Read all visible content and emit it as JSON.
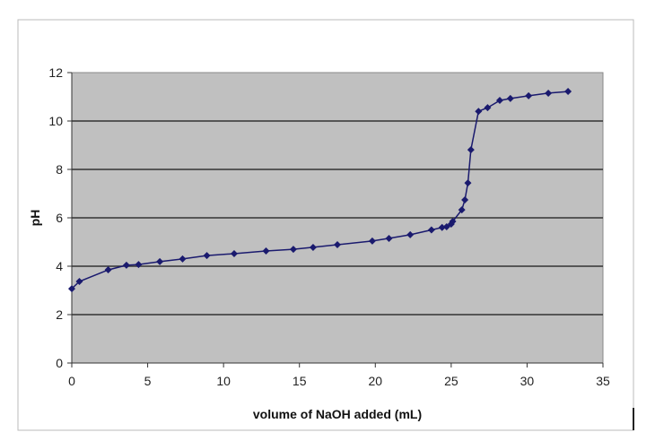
{
  "chart_data": {
    "type": "line",
    "title": "",
    "xlabel": "volume of NaOH added (mL)",
    "ylabel": "pH",
    "xlim": [
      0,
      35
    ],
    "ylim": [
      0,
      12
    ],
    "xticks": [
      "0",
      "5",
      "10",
      "15",
      "20",
      "25",
      "30",
      "35"
    ],
    "yticks": [
      "0",
      "2",
      "4",
      "6",
      "8",
      "10",
      "12"
    ],
    "grid": "horizontal",
    "plot_background": "#c0c0c0",
    "series_color": "#1a1a6e",
    "marker": "diamond",
    "series": [
      {
        "x": [
          0,
          0.5,
          2.4,
          3.6,
          4.4,
          5.8,
          7.3,
          8.9,
          10.7,
          12.8,
          14.6,
          15.9,
          17.5,
          19.8,
          20.9,
          22.3,
          23.7,
          24.4,
          24.7,
          25.0,
          25.1,
          25.7,
          25.9,
          26.1,
          26.3,
          26.8,
          27.4,
          28.2,
          28.9,
          30.1,
          31.4,
          32.7
        ],
        "y": [
          3.07,
          3.37,
          3.85,
          4.04,
          4.07,
          4.19,
          4.3,
          4.44,
          4.52,
          4.63,
          4.7,
          4.78,
          4.89,
          5.04,
          5.15,
          5.3,
          5.5,
          5.6,
          5.63,
          5.74,
          5.85,
          6.33,
          6.74,
          7.44,
          8.81,
          10.4,
          10.55,
          10.85,
          10.93,
          11.04,
          11.15,
          11.22
        ]
      }
    ]
  }
}
